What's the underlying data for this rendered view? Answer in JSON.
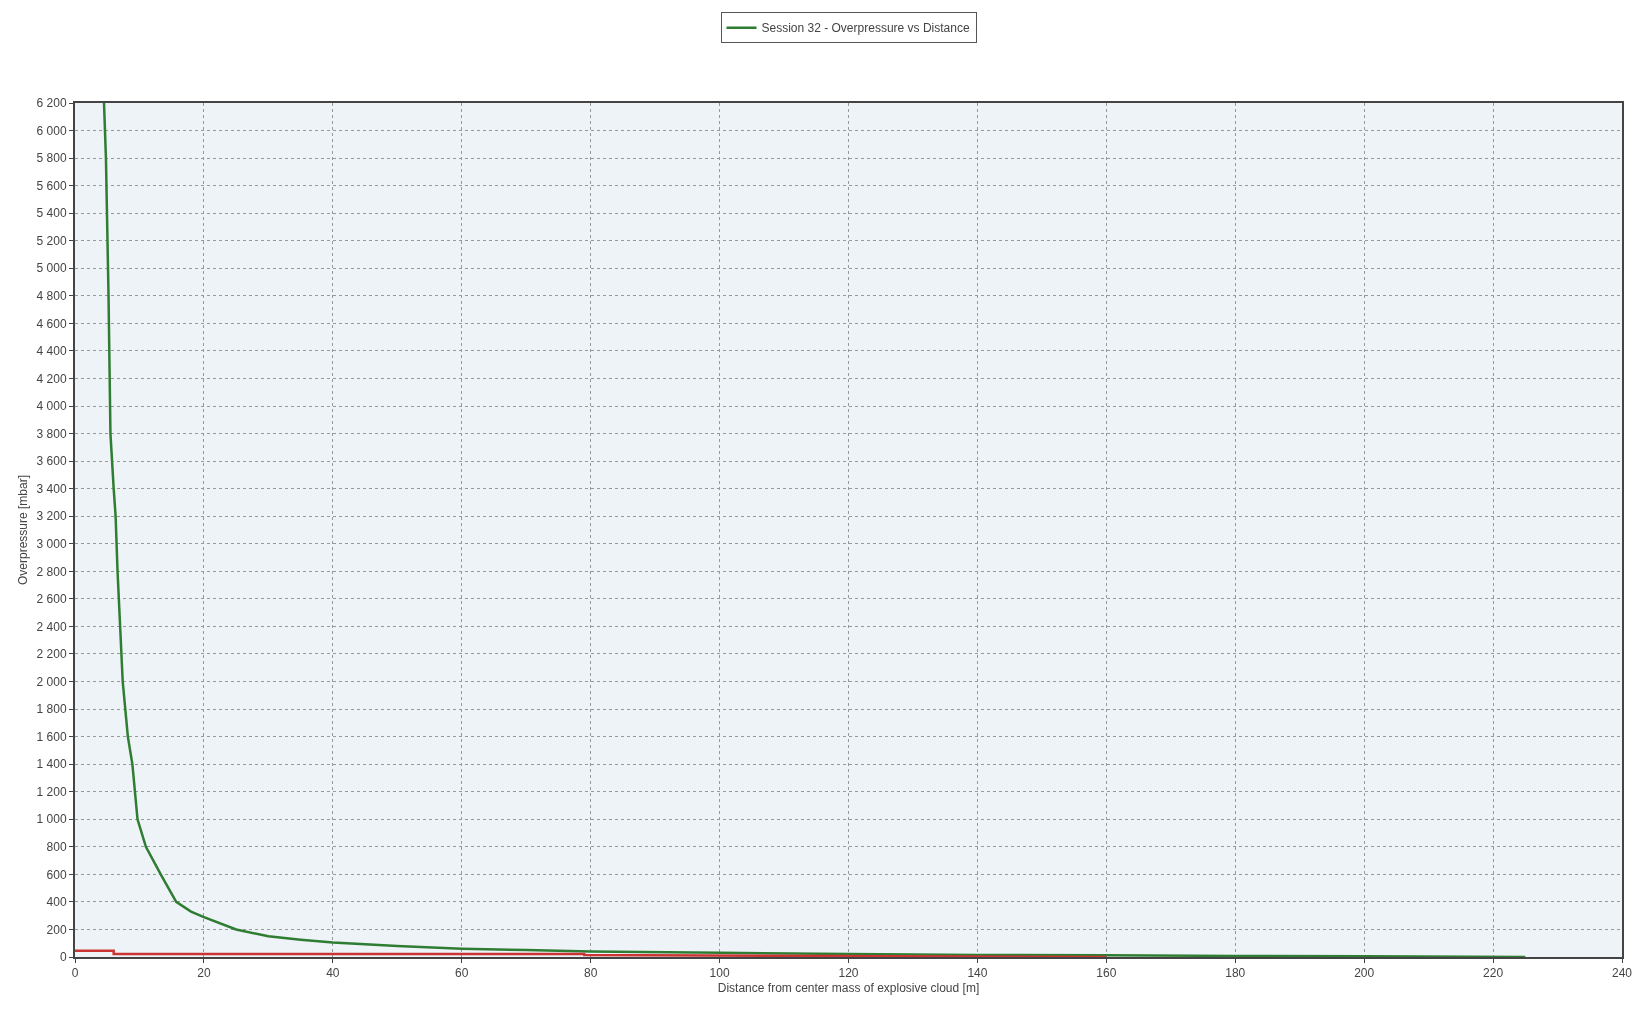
{
  "chart_data": {
    "type": "line",
    "xlabel": "Distance from center mass of explosive cloud [m]",
    "ylabel": "Overpressure [mbar]",
    "series": [
      {
        "name": "Session 32 - Overpressure vs Distance",
        "color": "#2e7d32",
        "x": [
          4.5,
          4.8,
          5.2,
          5.5,
          6.0,
          6.3,
          6.6,
          7.4,
          8.2,
          8.9,
          9.7,
          11,
          13.3,
          15.7,
          18,
          20,
          25,
          30,
          35,
          40,
          50,
          60,
          70,
          80,
          100,
          120,
          140,
          160,
          180,
          200,
          225
        ],
        "values": [
          6200,
          5800,
          4800,
          3800,
          3400,
          3200,
          2800,
          2000,
          1600,
          1400,
          1000,
          800,
          600,
          400,
          330,
          290,
          200,
          150,
          125,
          105,
          80,
          60,
          50,
          40,
          30,
          22,
          15,
          12,
          8,
          5,
          0
        ]
      },
      {
        "color": "#cc3333",
        "x": [
          0,
          6,
          6,
          79,
          79,
          160
        ],
        "values": [
          45,
          45,
          22,
          22,
          15,
          0
        ]
      }
    ],
    "xlim": [
      0,
      240
    ],
    "xticks": [
      0,
      20,
      40,
      60,
      80,
      100,
      120,
      140,
      160,
      180,
      200,
      220,
      240
    ],
    "ylim": [
      0,
      6200
    ],
    "yticks": [
      0,
      200,
      400,
      600,
      800,
      {
        "value": 1000,
        "label": "1 000"
      },
      {
        "value": 1200,
        "label": "1 200"
      },
      {
        "value": 1400,
        "label": "1 400"
      },
      {
        "value": 1600,
        "label": "1 600"
      },
      {
        "value": 1800,
        "label": "1 800"
      },
      {
        "value": 2000,
        "label": "2 000"
      },
      {
        "value": 2200,
        "label": "2 200"
      },
      {
        "value": 2400,
        "label": "2 400"
      },
      {
        "value": 2600,
        "label": "2 600"
      },
      {
        "value": 2800,
        "label": "2 800"
      },
      {
        "value": 3000,
        "label": "3 000"
      },
      {
        "value": 3200,
        "label": "3 200"
      },
      {
        "value": 3400,
        "label": "3 400"
      },
      {
        "value": 3600,
        "label": "3 600"
      },
      {
        "value": 3800,
        "label": "3 800"
      },
      {
        "value": 4000,
        "label": "4 000"
      },
      {
        "value": 4200,
        "label": "4 200"
      },
      {
        "value": 4400,
        "label": "4 400"
      },
      {
        "value": 4600,
        "label": "4 600"
      },
      {
        "value": 4800,
        "label": "4 800"
      },
      {
        "value": 5000,
        "label": "5 000"
      },
      {
        "value": 5200,
        "label": "5 200"
      },
      {
        "value": 5400,
        "label": "5 400"
      },
      {
        "value": 5600,
        "label": "5 600"
      },
      {
        "value": 5800,
        "label": "5 800"
      },
      {
        "value": 6000,
        "label": "6 000"
      },
      {
        "value": 6200,
        "label": "6 200"
      }
    ],
    "grid": true,
    "legend": "top",
    "marker": "none",
    "line_style": "solid"
  }
}
